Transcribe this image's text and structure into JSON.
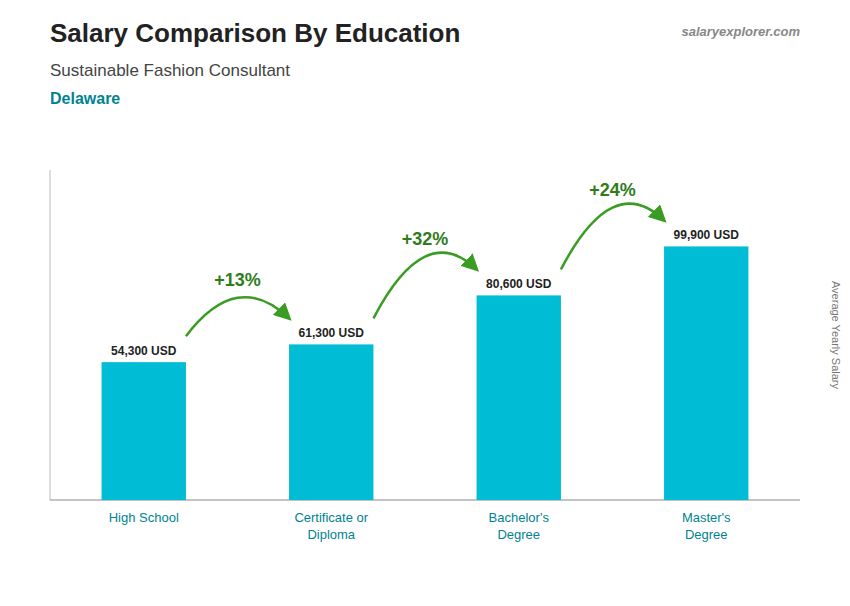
{
  "chart_data": {
    "type": "bar",
    "title": "Salary Comparison By Education",
    "subtitle": [
      "Sustainable Fashion Consultant",
      "Delaware"
    ],
    "watermark": "salaryexplorer.com",
    "ylabel": "Average Yearly Salary",
    "categories": [
      "High School",
      "Certificate or\nDiploma",
      "Bachelor's\nDegree",
      "Master's\nDegree"
    ],
    "values": [
      54300,
      61300,
      80600,
      99900
    ],
    "value_labels": [
      "54,300 USD",
      "61,300 USD",
      "80,600 USD",
      "99,900 USD"
    ],
    "data_labels": true,
    "annotations": [
      "+13%",
      "+32%",
      "+24%"
    ],
    "color": "#00bcd4",
    "ylim": [
      0,
      130000
    ],
    "tick_labels": false,
    "grid": false
  }
}
